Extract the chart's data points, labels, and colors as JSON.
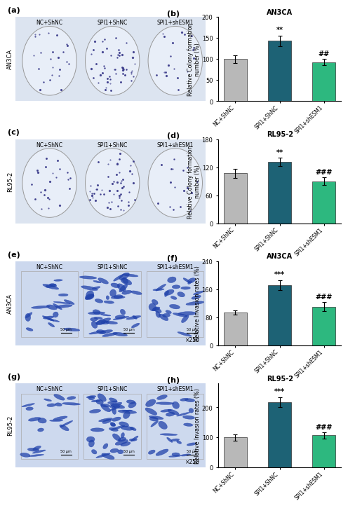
{
  "charts": [
    {
      "label": "b",
      "title": "AN3CA",
      "ylabel": "Relative Colony formation\nnumber (%)",
      "categories": [
        "NC+ShNC",
        "SPI1+ShNC",
        "SPI1+shESM1"
      ],
      "values": [
        100,
        143,
        93
      ],
      "errors": [
        9,
        13,
        7
      ],
      "ylim": [
        0,
        200
      ],
      "yticks": [
        0,
        50,
        100,
        150,
        200
      ],
      "sig_labels": [
        "",
        "**",
        "##"
      ],
      "colors": [
        "#b8b8b8",
        "#1d6275",
        "#2db87f"
      ]
    },
    {
      "label": "d",
      "title": "RL95-2",
      "ylabel": "Relative Colony formation\nnumber (%)",
      "categories": [
        "NC+ShNC",
        "SPI1+ShNC",
        "SPI1+shESM1"
      ],
      "values": [
        107,
        131,
        90
      ],
      "errors": [
        10,
        9,
        8
      ],
      "ylim": [
        0,
        180
      ],
      "yticks": [
        0,
        60,
        120,
        180
      ],
      "sig_labels": [
        "",
        "**",
        "###"
      ],
      "colors": [
        "#b8b8b8",
        "#1d6275",
        "#2db87f"
      ]
    },
    {
      "label": "f",
      "title": "AN3CA",
      "ylabel": "Relative Invasion rates (%)",
      "categories": [
        "NC+ShNC",
        "SPI1+ShNC",
        "SPI1+shESM1"
      ],
      "values": [
        93,
        172,
        110
      ],
      "errors": [
        6,
        14,
        13
      ],
      "ylim": [
        0,
        240
      ],
      "yticks": [
        0,
        80,
        160,
        240
      ],
      "sig_labels": [
        "",
        "***",
        "###"
      ],
      "colors": [
        "#b8b8b8",
        "#1d6275",
        "#2db87f"
      ]
    },
    {
      "label": "h",
      "title": "RL95-2",
      "ylabel": "Relative Invasion rates (%)",
      "categories": [
        "NC+ShNC",
        "SPI1+ShNC",
        "SPI1+shESM1"
      ],
      "values": [
        100,
        217,
        107
      ],
      "errors": [
        11,
        17,
        10
      ],
      "ylim": [
        0,
        280
      ],
      "yticks": [
        0,
        100,
        200
      ],
      "sig_labels": [
        "",
        "***",
        "###"
      ],
      "colors": [
        "#b8b8b8",
        "#1d6275",
        "#2db87f"
      ]
    }
  ],
  "left_labels": [
    "a",
    "c",
    "e",
    "g"
  ],
  "right_labels": [
    "b",
    "d",
    "f",
    "h"
  ],
  "row_labels": [
    "AN3CA",
    "RL95-2",
    "AN3CA",
    "RL95-2"
  ],
  "sub_labels": [
    "NC+ShNC",
    "SPI1+ShNC",
    "SPI1+shESM1"
  ],
  "dish_bg": "#dce4f0",
  "cell_bg": "#ccd8ee",
  "colony_dot_color": "#3a3a8a",
  "invasion_cell_color": "#2244aa",
  "fig_bg": "#ffffff"
}
